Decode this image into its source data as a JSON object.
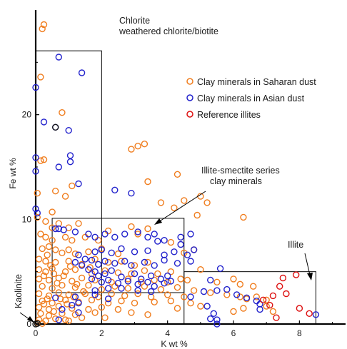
{
  "chart_data": {
    "type": "scatter",
    "xlabel": "K wt %",
    "ylabel": "Fe wt %",
    "xlim": [
      0,
      9.4
    ],
    "ylim": [
      0,
      30
    ],
    "x_ticks": [
      0,
      2,
      4,
      6,
      8
    ],
    "y_ticks": [
      0,
      10,
      20
    ],
    "grid": false,
    "legend_position": "top-right",
    "series": [
      {
        "name": "Clay minerals in Saharan dust",
        "color": "#f07d1e",
        "points": [
          [
            0.25,
            28.6
          ],
          [
            0.2,
            28.2
          ],
          [
            0.15,
            23.6
          ],
          [
            0.8,
            20.2
          ],
          [
            0.15,
            15.6
          ],
          [
            0.25,
            15.7
          ],
          [
            0.05,
            12.5
          ],
          [
            0.05,
            10.2
          ],
          [
            0.5,
            10.7
          ],
          [
            0.6,
            12.7
          ],
          [
            0.9,
            12.2
          ],
          [
            1.1,
            13.2
          ],
          [
            0.3,
            9.8
          ],
          [
            0.5,
            9.2
          ],
          [
            0.7,
            9.6
          ],
          [
            1.0,
            9.2
          ],
          [
            1.3,
            9.6
          ],
          [
            0.15,
            8.6
          ],
          [
            0.3,
            8.3
          ],
          [
            0.5,
            8.0
          ],
          [
            0.9,
            8.3
          ],
          [
            1.1,
            8.0
          ],
          [
            1.5,
            8.3
          ],
          [
            1.9,
            8.0
          ],
          [
            2.2,
            8.9
          ],
          [
            2.9,
            9.3
          ],
          [
            3.1,
            8.6
          ],
          [
            3.4,
            9.1
          ],
          [
            0.2,
            7.2
          ],
          [
            0.4,
            7.4
          ],
          [
            0.6,
            7.1
          ],
          [
            0.8,
            6.8
          ],
          [
            1.0,
            7.1
          ],
          [
            1.2,
            6.7
          ],
          [
            1.6,
            6.9
          ],
          [
            2.0,
            7.2
          ],
          [
            2.5,
            6.7
          ],
          [
            0.1,
            6.2
          ],
          [
            0.3,
            6.0
          ],
          [
            0.6,
            5.9
          ],
          [
            1.0,
            6.0
          ],
          [
            1.4,
            5.7
          ],
          [
            1.8,
            6.2
          ],
          [
            2.2,
            5.9
          ],
          [
            2.6,
            6.0
          ],
          [
            3.0,
            5.6
          ],
          [
            3.4,
            5.9
          ],
          [
            0.1,
            5.2
          ],
          [
            0.3,
            5.0
          ],
          [
            0.5,
            5.3
          ],
          [
            0.9,
            5.0
          ],
          [
            1.2,
            5.2
          ],
          [
            1.7,
            4.8
          ],
          [
            2.1,
            5.1
          ],
          [
            2.5,
            4.9
          ],
          [
            2.9,
            4.8
          ],
          [
            3.3,
            5.1
          ],
          [
            3.7,
            4.8
          ],
          [
            4.1,
            5.0
          ],
          [
            0.1,
            4.3
          ],
          [
            0.4,
            4.2
          ],
          [
            0.7,
            4.4
          ],
          [
            1.1,
            4.1
          ],
          [
            1.4,
            4.4
          ],
          [
            1.8,
            4.2
          ],
          [
            2.3,
            4.0
          ],
          [
            2.8,
            4.3
          ],
          [
            3.2,
            4.0
          ],
          [
            3.6,
            4.2
          ],
          [
            4.0,
            4.0
          ],
          [
            4.4,
            4.3
          ],
          [
            0.2,
            3.6
          ],
          [
            0.5,
            3.4
          ],
          [
            0.8,
            3.7
          ],
          [
            1.2,
            3.5
          ],
          [
            1.6,
            3.7
          ],
          [
            2.0,
            3.3
          ],
          [
            2.4,
            3.6
          ],
          [
            2.8,
            3.4
          ],
          [
            3.3,
            3.6
          ],
          [
            3.8,
            3.3
          ],
          [
            4.3,
            3.5
          ],
          [
            0.1,
            2.9
          ],
          [
            0.4,
            2.7
          ],
          [
            0.7,
            3.0
          ],
          [
            1.0,
            2.8
          ],
          [
            1.5,
            2.9
          ],
          [
            1.9,
            2.6
          ],
          [
            2.3,
            2.9
          ],
          [
            2.7,
            2.7
          ],
          [
            3.1,
            2.9
          ],
          [
            3.5,
            2.6
          ],
          [
            4.0,
            2.8
          ],
          [
            4.5,
            2.6
          ],
          [
            0.2,
            2.2
          ],
          [
            0.5,
            2.0
          ],
          [
            0.9,
            2.3
          ],
          [
            1.3,
            2.1
          ],
          [
            1.7,
            2.3
          ],
          [
            2.2,
            2.0
          ],
          [
            2.6,
            2.2
          ],
          [
            3.0,
            2.0
          ],
          [
            3.6,
            2.1
          ],
          [
            4.1,
            2.2
          ],
          [
            0.1,
            1.6
          ],
          [
            0.4,
            1.4
          ],
          [
            0.7,
            1.7
          ],
          [
            1.1,
            1.5
          ],
          [
            1.6,
            1.4
          ],
          [
            2.0,
            1.6
          ],
          [
            2.5,
            1.4
          ],
          [
            0.15,
            1.0
          ],
          [
            0.4,
            0.8
          ],
          [
            0.8,
            1.0
          ],
          [
            1.2,
            0.9
          ],
          [
            1.8,
            1.1
          ],
          [
            0.1,
            0.4
          ],
          [
            0.3,
            0.3
          ],
          [
            0.6,
            0.5
          ],
          [
            1.0,
            0.3
          ],
          [
            0.05,
            0.1
          ],
          [
            0.2,
            0.05
          ],
          [
            0.35,
            6.6
          ],
          [
            0.45,
            5.6
          ],
          [
            0.25,
            4.6
          ],
          [
            0.55,
            4.8
          ],
          [
            0.65,
            3.9
          ],
          [
            0.85,
            4.6
          ],
          [
            1.05,
            5.5
          ],
          [
            1.25,
            3.8
          ],
          [
            1.45,
            3.1
          ],
          [
            1.65,
            5.4
          ],
          [
            0.75,
            2.4
          ],
          [
            0.95,
            1.9
          ],
          [
            1.15,
            2.6
          ],
          [
            0.35,
            2.4
          ],
          [
            0.25,
            1.9
          ],
          [
            0.55,
            1.2
          ],
          [
            2.9,
            16.7
          ],
          [
            3.1,
            17.0
          ],
          [
            3.3,
            17.2
          ],
          [
            3.4,
            13.6
          ],
          [
            3.8,
            11.6
          ],
          [
            4.2,
            11.1
          ],
          [
            4.3,
            14.3
          ],
          [
            4.5,
            11.8
          ],
          [
            5.0,
            12.2
          ],
          [
            5.2,
            11.6
          ],
          [
            4.9,
            10.4
          ],
          [
            6.3,
            10.2
          ],
          [
            4.1,
            7.8
          ],
          [
            4.5,
            6.8
          ],
          [
            4.8,
            7.1
          ],
          [
            5.0,
            5.2
          ],
          [
            4.6,
            4.2
          ],
          [
            5.5,
            4.0
          ],
          [
            6.0,
            4.3
          ],
          [
            6.2,
            3.8
          ],
          [
            6.6,
            3.6
          ],
          [
            4.8,
            3.2
          ],
          [
            5.3,
            3.0
          ],
          [
            5.8,
            2.8
          ],
          [
            6.2,
            2.6
          ],
          [
            6.4,
            2.4
          ],
          [
            6.7,
            2.6
          ],
          [
            7.0,
            2.3
          ],
          [
            4.7,
            2.0
          ],
          [
            5.0,
            1.7
          ],
          [
            6.0,
            1.2
          ],
          [
            6.3,
            1.5
          ],
          [
            7.2,
            1.2
          ],
          [
            7.0,
            1.7
          ],
          [
            3.4,
            0.9
          ],
          [
            4.3,
            1.5
          ],
          [
            2.9,
            1.1
          ],
          [
            2.1,
            0.6
          ],
          [
            1.4,
            0.6
          ],
          [
            0.9,
            0.4
          ]
        ]
      },
      {
        "name": "Clay minerals in Asian dust",
        "color": "#2222cc",
        "points": [
          [
            0.7,
            25.5
          ],
          [
            1.4,
            24.0
          ],
          [
            0.0,
            22.6
          ],
          [
            0.25,
            19.3
          ],
          [
            0.6,
            18.8
          ],
          [
            1.0,
            18.5
          ],
          [
            1.05,
            16.1
          ],
          [
            1.05,
            15.5
          ],
          [
            0.0,
            15.9
          ],
          [
            0.7,
            15.0
          ],
          [
            0.0,
            14.6
          ],
          [
            1.3,
            13.4
          ],
          [
            0.0,
            11.0
          ],
          [
            0.05,
            10.6
          ],
          [
            2.4,
            12.8
          ],
          [
            2.9,
            12.5
          ],
          [
            0.6,
            9.1
          ],
          [
            0.7,
            9.1
          ],
          [
            0.85,
            9.0
          ],
          [
            1.6,
            8.6
          ],
          [
            1.2,
            8.8
          ],
          [
            1.8,
            8.3
          ],
          [
            2.1,
            8.6
          ],
          [
            2.4,
            8.3
          ],
          [
            2.7,
            8.6
          ],
          [
            3.1,
            8.8
          ],
          [
            3.4,
            8.3
          ],
          [
            3.6,
            8.6
          ],
          [
            3.9,
            8.0
          ],
          [
            4.4,
            8.3
          ],
          [
            4.7,
            8.6
          ],
          [
            4.4,
            7.6
          ],
          [
            3.7,
            7.9
          ],
          [
            1.8,
            6.9
          ],
          [
            2.0,
            7.1
          ],
          [
            2.3,
            6.8
          ],
          [
            2.6,
            7.2
          ],
          [
            3.0,
            6.9
          ],
          [
            3.4,
            7.0
          ],
          [
            3.9,
            6.6
          ],
          [
            4.2,
            6.9
          ],
          [
            4.6,
            6.6
          ],
          [
            4.8,
            7.1
          ],
          [
            1.7,
            6.1
          ],
          [
            1.9,
            5.7
          ],
          [
            2.1,
            6.0
          ],
          [
            2.4,
            5.8
          ],
          [
            2.7,
            6.0
          ],
          [
            2.9,
            5.6
          ],
          [
            3.3,
            5.9
          ],
          [
            3.6,
            5.6
          ],
          [
            3.9,
            6.1
          ],
          [
            4.3,
            5.8
          ],
          [
            4.7,
            6.0
          ],
          [
            1.3,
            6.6
          ],
          [
            1.5,
            6.2
          ],
          [
            1.6,
            5.2
          ],
          [
            1.8,
            5.0
          ],
          [
            1.9,
            4.6
          ],
          [
            2.1,
            4.8
          ],
          [
            2.3,
            5.1
          ],
          [
            2.6,
            4.5
          ],
          [
            3.0,
            4.8
          ],
          [
            3.2,
            4.3
          ],
          [
            3.5,
            4.6
          ],
          [
            3.8,
            4.3
          ],
          [
            4.0,
            4.6
          ],
          [
            1.2,
            5.9
          ],
          [
            1.4,
            5.6
          ],
          [
            1.7,
            4.3
          ],
          [
            2.0,
            4.0
          ],
          [
            2.2,
            4.2
          ],
          [
            2.5,
            3.9
          ],
          [
            2.8,
            4.1
          ],
          [
            3.1,
            3.8
          ],
          [
            3.4,
            4.0
          ],
          [
            3.6,
            3.6
          ],
          [
            3.9,
            3.9
          ],
          [
            4.1,
            4.1
          ],
          [
            2.2,
            3.4
          ],
          [
            2.6,
            3.4
          ],
          [
            3.1,
            3.2
          ],
          [
            3.5,
            3.1
          ],
          [
            1.8,
            3.2
          ],
          [
            0.6,
            2.5
          ],
          [
            1.2,
            2.6
          ],
          [
            1.3,
            2.0
          ],
          [
            1.8,
            2.8
          ],
          [
            2.2,
            2.4
          ],
          [
            0.8,
            1.4
          ],
          [
            1.1,
            1.8
          ],
          [
            1.3,
            1.1
          ],
          [
            0.7,
            0.4
          ],
          [
            5.3,
            4.2
          ],
          [
            5.6,
            5.3
          ],
          [
            5.5,
            3.2
          ],
          [
            5.8,
            3.3
          ],
          [
            6.1,
            2.8
          ],
          [
            6.4,
            2.5
          ],
          [
            6.7,
            2.2
          ],
          [
            6.8,
            1.9
          ],
          [
            5.1,
            3.1
          ],
          [
            4.7,
            2.6
          ],
          [
            5.2,
            1.7
          ],
          [
            5.4,
            1.0
          ],
          [
            5.5,
            0.4
          ],
          [
            8.5,
            0.9
          ],
          [
            6.8,
            1.4
          ],
          [
            5.3,
            0.5
          ],
          [
            5.5,
            0.0
          ]
        ]
      },
      {
        "name": "Reference illites",
        "color": "#dd1111",
        "points": [
          [
            7.9,
            4.7
          ],
          [
            7.5,
            4.4
          ],
          [
            7.4,
            3.6
          ],
          [
            7.2,
            2.7
          ],
          [
            6.9,
            2.3
          ],
          [
            7.1,
            1.8
          ],
          [
            8.0,
            1.5
          ],
          [
            8.3,
            1.0
          ],
          [
            7.6,
            2.9
          ],
          [
            7.3,
            0.6
          ]
        ]
      },
      {
        "name": "",
        "color": "#1a1a1a",
        "points": [
          [
            0.6,
            18.8
          ],
          [
            0.0,
            0.0
          ],
          [
            0.05,
            0.05
          ]
        ]
      }
    ],
    "annotations": [
      {
        "text": "Chlorite",
        "box": {
          "x": [
            0,
            2
          ],
          "y": [
            0,
            26.1
          ]
        }
      },
      {
        "text": "weathered chlorite/biotite"
      },
      {
        "text": "Illite-smectite series",
        "box": {
          "x": [
            0.5,
            4.5
          ],
          "y": [
            3,
            10.1
          ]
        }
      },
      {
        "text": "clay minerals"
      },
      {
        "text": "Illite",
        "box": {
          "x": [
            4.5,
            8.5
          ],
          "y": [
            0,
            5
          ]
        }
      },
      {
        "text": "Kaolinite"
      }
    ]
  }
}
